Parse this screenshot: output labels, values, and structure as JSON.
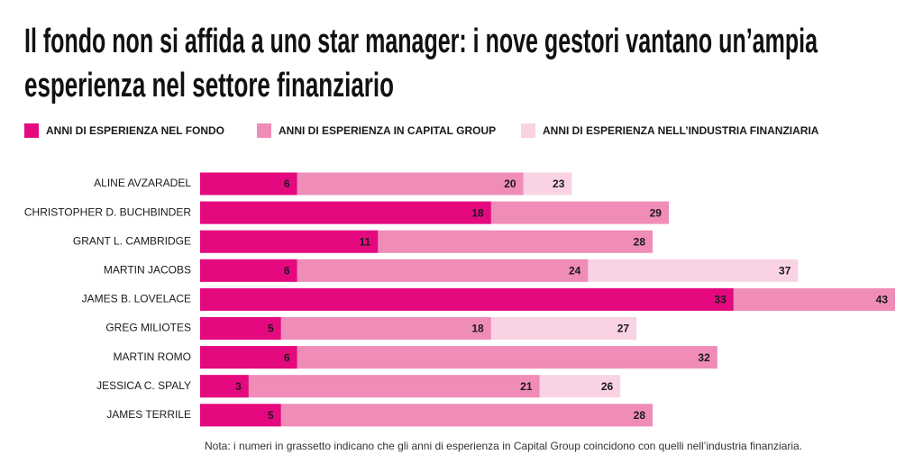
{
  "chart_data": {
    "type": "bar",
    "orientation": "horizontal",
    "overlap": true,
    "title": [
      "Il fondo non si affida a uno star manager: i nove gestori vantano un’ampia",
      "esperienza nel settore finanziario"
    ],
    "categories": [
      "ALINE AVZARADEL",
      "CHRISTOPHER D. BUCHBINDER",
      "GRANT L. CAMBRIDGE",
      "MARTIN JACOBS",
      "JAMES B. LOVELACE",
      "GREG  MILIOTES",
      "MARTIN ROMO",
      "JESSICA C. SPALY",
      "JAMES TERRILE"
    ],
    "series": [
      {
        "name": "ANNI DI ESPERIENZA NELL’INDUSTRIA FINANZIARIA",
        "color": "#f9d3e4",
        "values": [
          23,
          29,
          28,
          37,
          43,
          27,
          32,
          26,
          28
        ]
      },
      {
        "name": "ANNI DI ESPERIENZA IN CAPITAL GROUP",
        "color": "#f08cb8",
        "values": [
          20,
          29,
          28,
          24,
          43,
          18,
          32,
          21,
          28
        ]
      },
      {
        "name": "ANNI DI ESPERIENZA NEL FONDO",
        "color": "#e5097f",
        "values": [
          6,
          18,
          11,
          6,
          33,
          5,
          6,
          3,
          5
        ]
      }
    ],
    "xlim": [
      0,
      43
    ],
    "note": "Nota: i numeri in grassetto indicano che gli anni di esperienza in Capital Group coincidono con quelli nell’industria finanziaria."
  }
}
